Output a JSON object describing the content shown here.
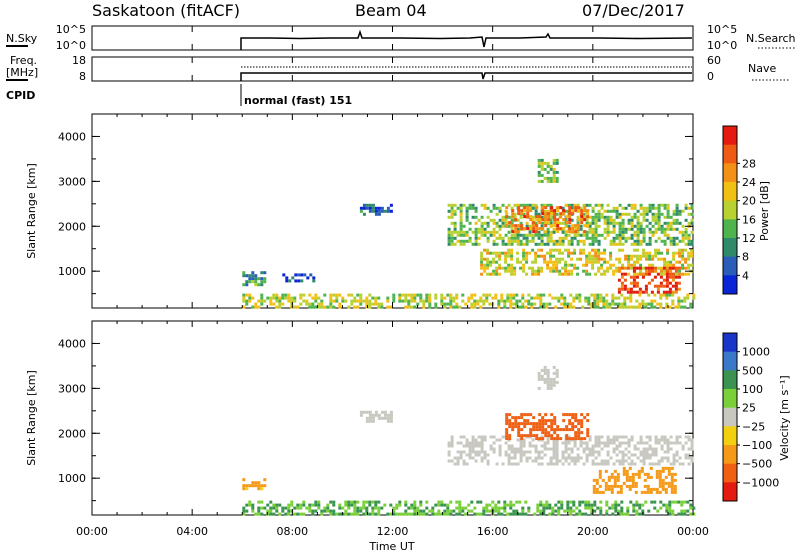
{
  "header": {
    "station": "Saskatoon (fitACF)",
    "beam": "Beam 04",
    "date": "07/Dec/2017"
  },
  "noise_panel": {
    "left_label": "N.Sky",
    "right_label": "N.Search",
    "left_ticks": [
      "10^5",
      "10^0"
    ],
    "right_ticks": [
      "10^5",
      "10^0"
    ]
  },
  "freq_panel": {
    "left_label_1": "Freq.",
    "left_label_2": "[MHz]",
    "right_label": "Nave",
    "left_ticks": [
      "18",
      "8"
    ],
    "right_ticks": [
      "60",
      "0"
    ]
  },
  "cpid": {
    "label": "CPID",
    "mode": "normal (fast) 151"
  },
  "colors": {
    "frame": "#000000",
    "background": "#ffffff",
    "ground_scatter": "#c8c8c0"
  },
  "chart_data": [
    {
      "type": "heatmap",
      "panel": "power",
      "ylabel": "Slant Range [km]",
      "yticks": [
        "1000",
        "2000",
        "3000",
        "4000"
      ],
      "ylim": [
        180,
        4500
      ],
      "xlim": [
        0,
        24
      ],
      "colorbar_label": "Power [dB]",
      "colorbar_ticks": [
        "4",
        "8",
        "12",
        "16",
        "20",
        "24",
        "28"
      ],
      "colorbar_colors": [
        "#0a24d8",
        "#2a5db8",
        "#2f8a6a",
        "#4fb44e",
        "#b8d030",
        "#f2c014",
        "#f39018",
        "#ef5a14",
        "#e41c10"
      ],
      "echo_regions": [
        {
          "t": [
            6.0,
            24.0
          ],
          "r": [
            200,
            500
          ],
          "value": 16
        },
        {
          "t": [
            6.0,
            6.9
          ],
          "r": [
            700,
            1000
          ],
          "value": 10
        },
        {
          "t": [
            7.6,
            8.8
          ],
          "r": [
            750,
            950
          ],
          "value": 6
        },
        {
          "t": [
            10.7,
            12.0
          ],
          "r": [
            2250,
            2500
          ],
          "value": 6
        },
        {
          "t": [
            14.2,
            24.0
          ],
          "r": [
            1600,
            2500
          ],
          "value": 14
        },
        {
          "t": [
            16.5,
            19.8
          ],
          "r": [
            1900,
            2450
          ],
          "value": 24
        },
        {
          "t": [
            17.8,
            18.6
          ],
          "r": [
            3000,
            3500
          ],
          "value": 14
        },
        {
          "t": [
            15.5,
            24.0
          ],
          "r": [
            900,
            1500
          ],
          "value": 18
        },
        {
          "t": [
            21.0,
            23.5
          ],
          "r": [
            500,
            1100
          ],
          "value": 28
        }
      ]
    },
    {
      "type": "heatmap",
      "panel": "velocity",
      "ylabel": "Slant Range [km]",
      "yticks": [
        "1000",
        "2000",
        "3000",
        "4000"
      ],
      "ylim": [
        180,
        4500
      ],
      "xlim": [
        0,
        24
      ],
      "xticks": [
        "00:00",
        "04:00",
        "08:00",
        "12:00",
        "16:00",
        "20:00",
        "00:00"
      ],
      "xlabel": "Time UT",
      "colorbar_label": "Velocity [m s⁻¹]",
      "colorbar_ticks": [
        "1000",
        "500",
        "100",
        "25",
        "−25",
        "−100",
        "−500",
        "−1000"
      ],
      "colorbar_colors": [
        "#1a36c8",
        "#3c78c8",
        "#3a9450",
        "#7ad038",
        "#c8c8c0",
        "#f2d010",
        "#f59a18",
        "#ef6014",
        "#e41c10"
      ],
      "echo_regions": [
        {
          "t": [
            6.0,
            24.0
          ],
          "r": [
            200,
            500
          ],
          "value": 60
        },
        {
          "t": [
            6.0,
            6.9
          ],
          "r": [
            750,
            1000
          ],
          "value": -80
        },
        {
          "t": [
            10.7,
            12.0
          ],
          "r": [
            2250,
            2500
          ],
          "value": 0
        },
        {
          "t": [
            14.2,
            24.0
          ],
          "r": [
            1300,
            1950
          ],
          "value": 0
        },
        {
          "t": [
            16.5,
            19.8
          ],
          "r": [
            1900,
            2450
          ],
          "value": -400
        },
        {
          "t": [
            17.8,
            18.6
          ],
          "r": [
            3000,
            3500
          ],
          "value": 0
        },
        {
          "t": [
            20.0,
            23.3
          ],
          "r": [
            700,
            1250
          ],
          "value": -200
        }
      ]
    }
  ]
}
